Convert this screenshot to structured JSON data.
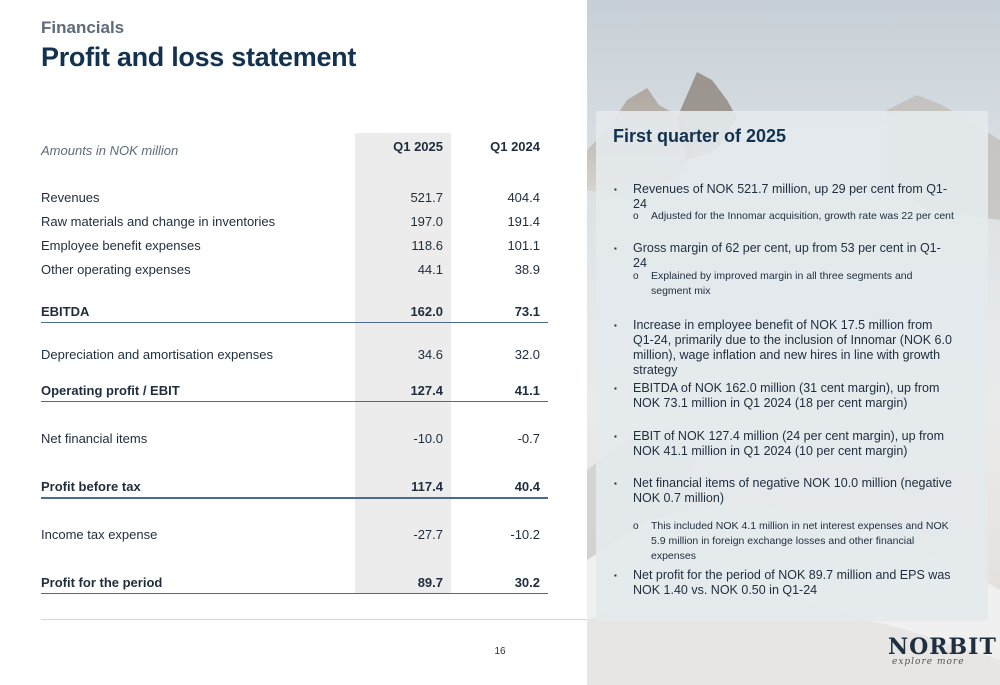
{
  "header": {
    "kicker": "Financials",
    "title": "Profit and loss statement"
  },
  "table": {
    "units_label": "Amounts in NOK million",
    "columns": [
      "Q1 2025",
      "Q1 2024"
    ],
    "rows": [
      {
        "label": "Revenues",
        "q1_2025": "521.7",
        "q1_2024": "404.4",
        "bold": false
      },
      {
        "label": "Raw materials and change in inventories",
        "q1_2025": "197.0",
        "q1_2024": "191.4",
        "bold": false
      },
      {
        "label": "Employee benefit expenses",
        "q1_2025": "118.6",
        "q1_2024": "101.1",
        "bold": false
      },
      {
        "label": "Other operating expenses",
        "q1_2025": "44.1",
        "q1_2024": "38.9",
        "bold": false
      },
      {
        "label": "EBITDA",
        "q1_2025": "162.0",
        "q1_2024": "73.1",
        "bold": true
      },
      {
        "label": "Depreciation and amortisation expenses",
        "q1_2025": "34.6",
        "q1_2024": "32.0",
        "bold": false
      },
      {
        "label": "Operating profit / EBIT",
        "q1_2025": "127.4",
        "q1_2024": "41.1",
        "bold": true
      },
      {
        "label": "Net financial items",
        "q1_2025": "-10.0",
        "q1_2024": "-0.7",
        "bold": false
      },
      {
        "label": "Profit before tax",
        "q1_2025": "117.4",
        "q1_2024": "40.4",
        "bold": true
      },
      {
        "label": "Income tax expense",
        "q1_2025": "-27.7",
        "q1_2024": "-10.2",
        "bold": false
      },
      {
        "label": "Profit for the period",
        "q1_2025": "89.7",
        "q1_2024": "30.2",
        "bold": true
      }
    ]
  },
  "panel": {
    "title": "First quarter of 2025",
    "bullets": [
      "Revenues of NOK 521.7 million, up 29 per cent from Q1-24",
      "Adjusted for the Innomar acquisition, growth rate was 22 per cent",
      "Gross margin of 62 per cent, up from 53 per cent in Q1-24",
      "Explained by improved margin in all three segments and segment mix",
      "Increase in employee benefit of NOK 17.5 million from Q1-24, primarily due to the inclusion of Innomar (NOK 6.0 million), wage inflation and new hires in line with growth strategy",
      "EBITDA of NOK 162.0 million (31 cent margin), up from NOK 73.1 million in Q1 2024 (18 per cent margin)",
      "EBIT of NOK 127.4 million (24 per cent margin), up from NOK 41.1 million in Q1 2024 (10 per cent margin)",
      "Net financial items of negative NOK 10.0 million (negative NOK 0.7 million)",
      "This included NOK 4.1 million in net interest expenses and NOK 5.9 million in foreign exchange losses and other financial expenses",
      "Net profit for the period of NOK 89.7 million and EPS was NOK 1.40 vs. NOK 0.50 in Q1-24"
    ],
    "bullet_marker": "▪",
    "sub_marker": "o"
  },
  "footer": {
    "page_number": "16",
    "logo": "NORBIT",
    "logo_tagline": "explore more"
  }
}
